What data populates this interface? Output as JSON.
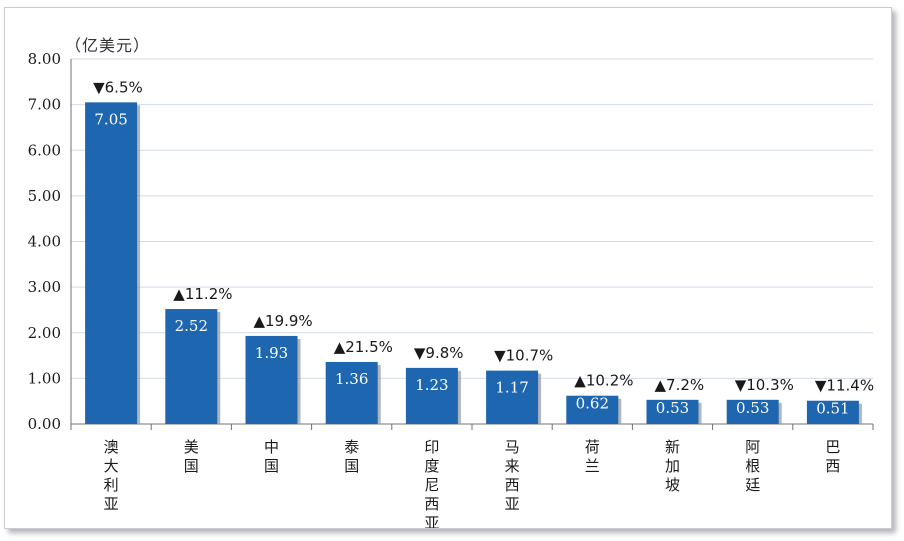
{
  "chart_data": {
    "type": "bar",
    "unit_label": "（亿美元）",
    "categories": [
      "澳大利亚",
      "美国",
      "中国",
      "泰国",
      "印度尼西亚",
      "马来西亚",
      "荷兰",
      "新加坡",
      "阿根廷",
      "巴西"
    ],
    "values": [
      7.05,
      2.52,
      1.93,
      1.36,
      1.23,
      1.17,
      0.62,
      0.53,
      0.53,
      0.51
    ],
    "value_labels": [
      "7.05",
      "2.52",
      "1.93",
      "1.36",
      "1.23",
      "1.17",
      "0.62",
      "0.53",
      "0.53",
      "0.51"
    ],
    "changes": [
      {
        "direction": "down",
        "text": "6.5%"
      },
      {
        "direction": "up",
        "text": "11.2%"
      },
      {
        "direction": "up",
        "text": "19.9%"
      },
      {
        "direction": "up",
        "text": "21.5%"
      },
      {
        "direction": "down",
        "text": "9.8%"
      },
      {
        "direction": "down",
        "text": "10.7%"
      },
      {
        "direction": "up",
        "text": "10.2%"
      },
      {
        "direction": "up",
        "text": "7.2%"
      },
      {
        "direction": "down",
        "text": "10.3%"
      },
      {
        "direction": "down",
        "text": "11.4%"
      }
    ],
    "arrow_symbols": {
      "up": "▲",
      "down": "▼"
    },
    "y_ticks": [
      "0.00",
      "1.00",
      "2.00",
      "3.00",
      "4.00",
      "5.00",
      "6.00",
      "7.00",
      "8.00"
    ],
    "ylim": [
      0,
      8
    ],
    "grid": true,
    "colors": {
      "bar": "#1f66b0",
      "bar_shadow": "#9ea3ab",
      "grid": "#d3dbe8",
      "axis": "#6d7076",
      "text": "#1a1a1a",
      "value_label": "#ffffff",
      "arrow": "#1e3f78"
    }
  }
}
